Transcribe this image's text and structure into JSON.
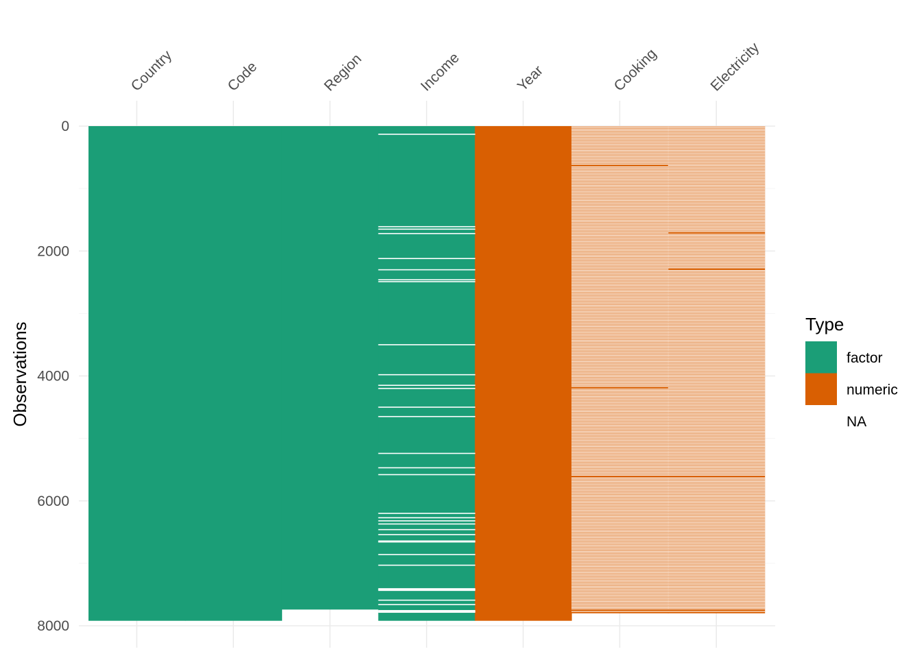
{
  "chart_data": {
    "type": "heatmap",
    "title": "",
    "xlabel": "",
    "ylabel": "Observations",
    "columns": [
      "Country",
      "Code",
      "Region",
      "Income",
      "Year",
      "Cooking",
      "Electricity"
    ],
    "y_ticks": [
      0,
      2000,
      4000,
      6000,
      8000
    ],
    "ylim": [
      0,
      8000
    ],
    "n_rows": 7920,
    "legend": {
      "title": "Type",
      "position": "right",
      "entries": [
        {
          "label": "factor",
          "color": "#1b9e77"
        },
        {
          "label": "numeric",
          "color": "#d95f02"
        },
        {
          "label": "NA",
          "color": "#ffffff"
        }
      ]
    },
    "column_types": [
      "factor",
      "factor",
      "factor",
      "factor",
      "numeric",
      "numeric",
      "numeric"
    ],
    "column_extent": [
      7920,
      7920,
      7740,
      7920,
      7920,
      7800,
      7800
    ],
    "missing_rows": {
      "Country": [],
      "Code": [],
      "Region": [],
      "Income": [
        130,
        1610,
        1650,
        1720,
        2120,
        2300,
        2460,
        2490,
        3500,
        3980,
        4150,
        4200,
        4500,
        4650,
        5240,
        5470,
        5580,
        6200,
        6270,
        6320,
        6370,
        6460,
        6540,
        6650,
        6860,
        7030,
        7420,
        7590,
        7660,
        7770
      ],
      "Year": [],
      "Cooking": [
        10,
        30,
        50,
        70,
        90,
        110,
        130,
        150,
        170,
        190,
        210,
        230,
        250,
        270,
        290,
        310,
        330,
        350,
        370,
        390,
        410,
        430,
        450,
        470,
        490,
        510,
        530,
        550,
        570,
        590,
        610,
        650,
        670,
        690,
        710,
        730,
        750,
        770,
        790,
        810,
        830,
        850,
        870,
        890,
        910,
        930,
        950,
        970,
        990,
        1010,
        1030,
        1050,
        1070,
        1090,
        1110,
        1130,
        1150,
        1170,
        1190,
        1210,
        1230,
        1250,
        1270,
        1290,
        1310,
        1330,
        1350,
        1370,
        1390,
        1410,
        1430,
        1450,
        1470,
        1490,
        1510,
        1530,
        1550,
        1570,
        1590,
        1610,
        1630,
        1650,
        1670,
        1690,
        1710,
        1730,
        1750,
        1770,
        1790,
        1810,
        1830,
        1850,
        1870,
        1890,
        1910,
        1930,
        1950,
        1970,
        1990,
        2010,
        2030,
        2050,
        2070,
        2090,
        2110,
        2130,
        2150,
        2170,
        2190,
        2210,
        2230,
        2250,
        2270,
        2290,
        2310,
        2330,
        2350,
        2370,
        2390,
        2410,
        2430,
        2450,
        2470,
        2490,
        2510,
        2530,
        2550,
        2570,
        2590,
        2610,
        2630,
        2650,
        2670,
        2690,
        2710,
        2730,
        2750,
        2770,
        2790,
        2810,
        2830,
        2850,
        2870,
        2890,
        2910,
        2930,
        2950,
        2970,
        2990,
        3010,
        3030,
        3050,
        3070,
        3090,
        3110,
        3130,
        3150,
        3170,
        3190,
        3210,
        3230,
        3250,
        3270,
        3290,
        3310,
        3330,
        3350,
        3370,
        3390,
        3410,
        3430,
        3450,
        3470,
        3490,
        3510,
        3530,
        3550,
        3570,
        3590,
        3610,
        3630,
        3650,
        3670,
        3690,
        3710,
        3730,
        3750,
        3770,
        3790,
        3810,
        3830,
        3850,
        3870,
        3890,
        3910,
        3930,
        3950,
        3970,
        3990,
        4010,
        4030,
        4050,
        4070,
        4090,
        4110,
        4130,
        4150,
        4170,
        4210,
        4230,
        4250,
        4270,
        4290,
        4310,
        4330,
        4350,
        4370,
        4390,
        4410,
        4430,
        4450,
        4470,
        4490,
        4510,
        4530,
        4550,
        4570,
        4590,
        4610,
        4630,
        4650,
        4670,
        4690,
        4710,
        4730,
        4750,
        4770,
        4790,
        4810,
        4830,
        4850,
        4870,
        4890,
        4910,
        4930,
        4950,
        4970,
        4990,
        5010,
        5030,
        5050,
        5070,
        5090,
        5110,
        5130,
        5150,
        5170,
        5190,
        5210,
        5230,
        5250,
        5270,
        5290,
        5310,
        5330,
        5350,
        5370,
        5390,
        5410,
        5430,
        5450,
        5470,
        5490,
        5510,
        5530,
        5550,
        5570,
        5590,
        5630,
        5650,
        5670,
        5690,
        5710,
        5730,
        5750,
        5770,
        5790,
        5810,
        5830,
        5850,
        5870,
        5890,
        5910,
        5930,
        5950,
        5970,
        5990,
        6010,
        6030,
        6050,
        6070,
        6090,
        6110,
        6130,
        6150,
        6170,
        6190,
        6210,
        6230,
        6250,
        6270,
        6290,
        6310,
        6330,
        6350,
        6370,
        6390,
        6410,
        6430,
        6450,
        6470,
        6490,
        6510,
        6530,
        6550,
        6570,
        6590,
        6610,
        6630,
        6650,
        6670,
        6690,
        6710,
        6730,
        6750,
        6770,
        6790,
        6810,
        6830,
        6850,
        6870,
        6890,
        6910,
        6930,
        6950,
        6970,
        6990,
        7010,
        7030,
        7050,
        7070,
        7090,
        7110,
        7130,
        7150,
        7170,
        7190,
        7210,
        7230,
        7250,
        7270,
        7290,
        7310,
        7330,
        7350,
        7370,
        7390,
        7410,
        7430,
        7450,
        7470,
        7490,
        7510,
        7530,
        7550,
        7570,
        7590,
        7610,
        7630,
        7650,
        7670,
        7690,
        7710,
        7730,
        7770
      ],
      "Electricity": [
        10,
        30,
        50,
        70,
        90,
        110,
        130,
        150,
        170,
        190,
        210,
        230,
        250,
        270,
        290,
        310,
        330,
        350,
        370,
        390,
        410,
        430,
        450,
        470,
        490,
        510,
        530,
        550,
        570,
        590,
        610,
        630,
        650,
        670,
        690,
        710,
        730,
        750,
        770,
        790,
        810,
        830,
        850,
        870,
        890,
        910,
        930,
        950,
        970,
        990,
        1010,
        1030,
        1050,
        1070,
        1090,
        1110,
        1130,
        1150,
        1170,
        1190,
        1210,
        1230,
        1250,
        1270,
        1290,
        1310,
        1330,
        1350,
        1370,
        1390,
        1410,
        1430,
        1450,
        1470,
        1490,
        1510,
        1530,
        1550,
        1570,
        1590,
        1610,
        1630,
        1650,
        1670,
        1690,
        1730,
        1750,
        1770,
        1790,
        1810,
        1830,
        1850,
        1870,
        1890,
        1910,
        1930,
        1950,
        1970,
        1990,
        2010,
        2030,
        2050,
        2070,
        2090,
        2110,
        2130,
        2150,
        2170,
        2190,
        2210,
        2230,
        2250,
        2270,
        2310,
        2330,
        2350,
        2370,
        2390,
        2410,
        2430,
        2450,
        2470,
        2490,
        2510,
        2530,
        2550,
        2570,
        2590,
        2610,
        2630,
        2650,
        2670,
        2690,
        2710,
        2730,
        2750,
        2770,
        2790,
        2810,
        2830,
        2850,
        2870,
        2890,
        2910,
        2930,
        2950,
        2970,
        2990,
        3010,
        3030,
        3050,
        3070,
        3090,
        3110,
        3130,
        3150,
        3170,
        3190,
        3210,
        3230,
        3250,
        3270,
        3290,
        3310,
        3330,
        3350,
        3370,
        3390,
        3410,
        3430,
        3450,
        3470,
        3490,
        3510,
        3530,
        3550,
        3570,
        3590,
        3610,
        3630,
        3650,
        3670,
        3690,
        3710,
        3730,
        3750,
        3770,
        3790,
        3810,
        3830,
        3850,
        3870,
        3890,
        3910,
        3930,
        3950,
        3970,
        3990,
        4010,
        4030,
        4050,
        4070,
        4090,
        4110,
        4130,
        4150,
        4170,
        4190,
        4210,
        4230,
        4250,
        4270,
        4290,
        4310,
        4330,
        4350,
        4370,
        4390,
        4410,
        4430,
        4450,
        4470,
        4490,
        4510,
        4530,
        4550,
        4570,
        4590,
        4610,
        4630,
        4650,
        4670,
        4690,
        4710,
        4730,
        4750,
        4770,
        4790,
        4810,
        4830,
        4850,
        4870,
        4890,
        4910,
        4930,
        4950,
        4970,
        4990,
        5010,
        5030,
        5050,
        5070,
        5090,
        5110,
        5130,
        5150,
        5170,
        5190,
        5210,
        5230,
        5250,
        5270,
        5290,
        5310,
        5330,
        5350,
        5370,
        5390,
        5410,
        5430,
        5450,
        5470,
        5490,
        5510,
        5530,
        5550,
        5570,
        5590,
        5630,
        5650,
        5670,
        5690,
        5710,
        5730,
        5750,
        5770,
        5790,
        5810,
        5830,
        5850,
        5870,
        5890,
        5910,
        5930,
        5950,
        5970,
        5990,
        6010,
        6030,
        6050,
        6070,
        6090,
        6110,
        6130,
        6150,
        6170,
        6190,
        6210,
        6230,
        6250,
        6270,
        6290,
        6310,
        6330,
        6350,
        6370,
        6390,
        6410,
        6430,
        6450,
        6470,
        6490,
        6510,
        6530,
        6550,
        6570,
        6590,
        6610,
        6630,
        6650,
        6670,
        6690,
        6710,
        6730,
        6750,
        6770,
        6790,
        6810,
        6830,
        6850,
        6870,
        6890,
        6910,
        6930,
        6950,
        6970,
        6990,
        7010,
        7030,
        7050,
        7070,
        7090,
        7110,
        7130,
        7150,
        7170,
        7190,
        7210,
        7230,
        7250,
        7270,
        7290,
        7310,
        7330,
        7350,
        7370,
        7390,
        7410,
        7430,
        7450,
        7470,
        7490,
        7510,
        7530,
        7550,
        7570,
        7590,
        7610,
        7630,
        7650,
        7670,
        7690,
        7710,
        7730,
        7770
      ]
    },
    "grid": true
  }
}
